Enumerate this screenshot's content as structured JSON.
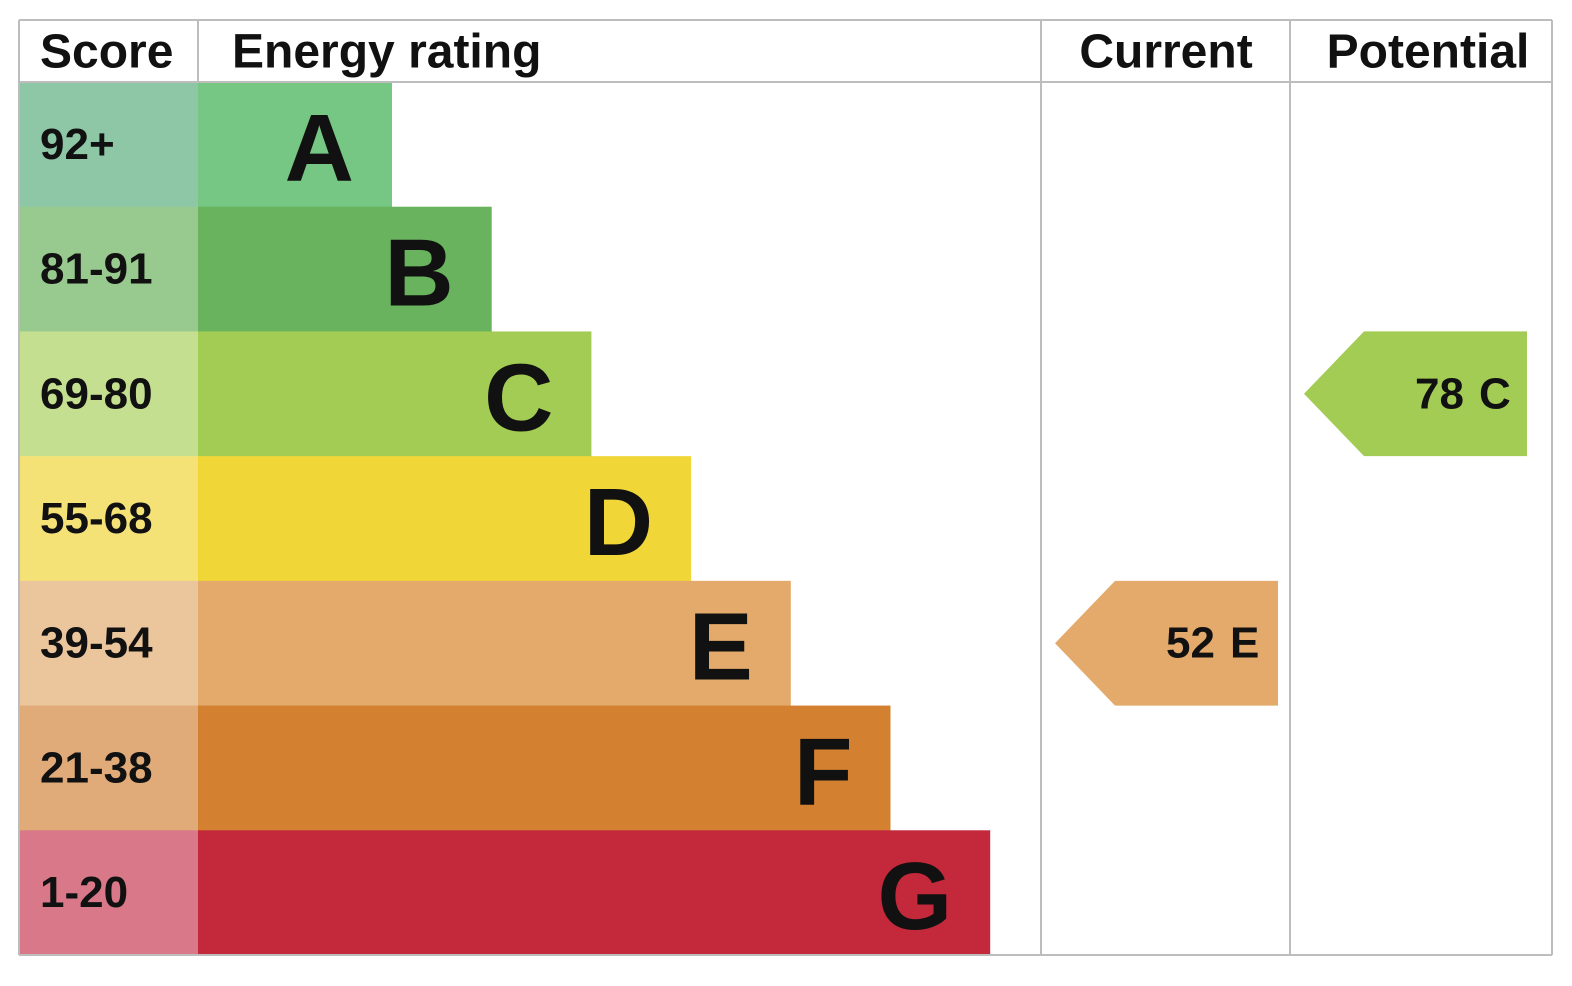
{
  "header": {
    "score": "Score",
    "rating": "Energy rating",
    "current": "Current",
    "potential": "Potential"
  },
  "bands": [
    {
      "score": "92+",
      "letter": "A",
      "color": "#76c784",
      "score_color": "#8dc7a6"
    },
    {
      "score": "81-91",
      "letter": "B",
      "color": "#69b25e",
      "score_color": "#98c98e"
    },
    {
      "score": "69-80",
      "letter": "C",
      "color": "#a3cc54",
      "score_color": "#c4df8f"
    },
    {
      "score": "55-68",
      "letter": "D",
      "color": "#f0d636",
      "score_color": "#f5e277"
    },
    {
      "score": "39-54",
      "letter": "E",
      "color": "#e4aa6c",
      "score_color": "#ebc69c"
    },
    {
      "score": "21-38",
      "letter": "F",
      "color": "#d38130",
      "score_color": "#e0ab78"
    },
    {
      "score": "1-20",
      "letter": "G",
      "color": "#c3283b",
      "score_color": "#d87888"
    }
  ],
  "current": {
    "value": 52,
    "letter": "E"
  },
  "potential": {
    "value": 78,
    "letter": "C"
  }
}
